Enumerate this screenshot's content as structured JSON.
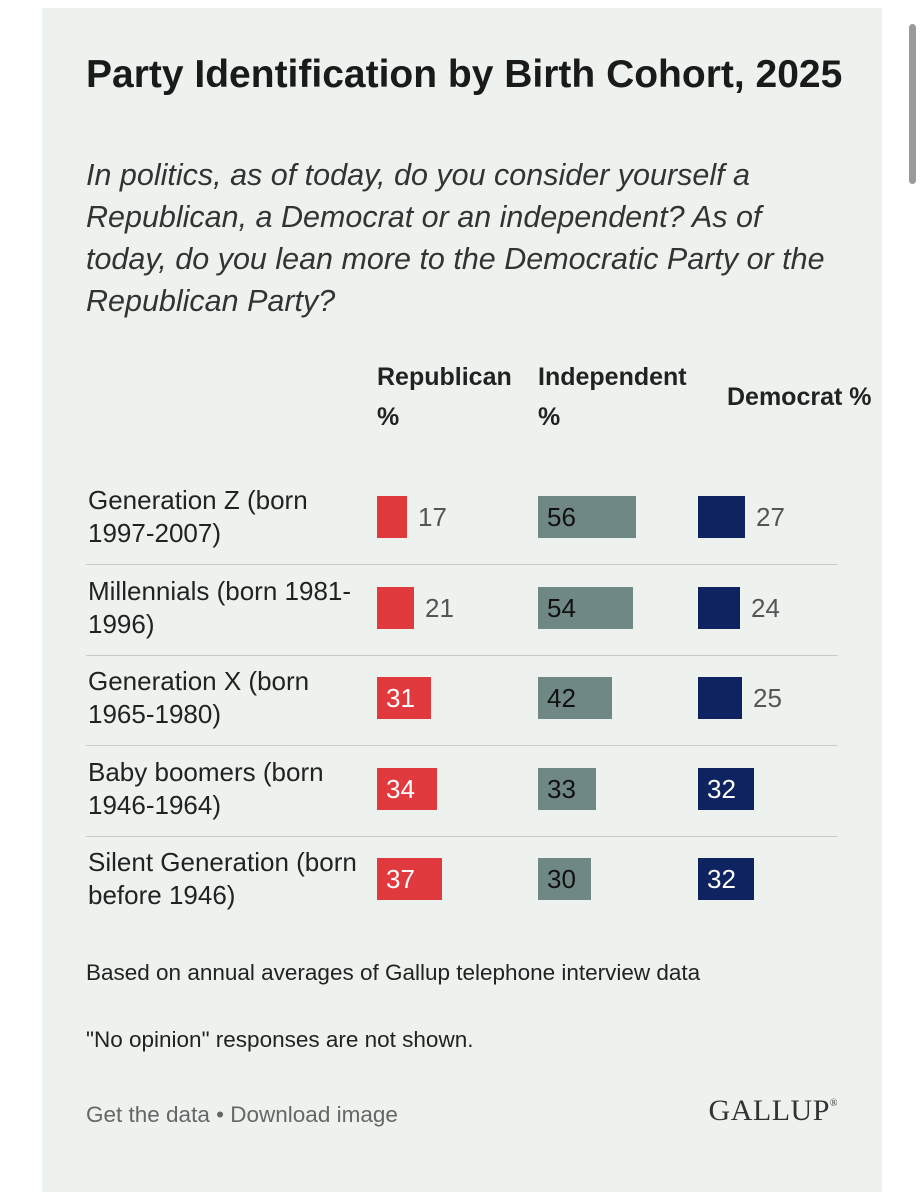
{
  "header": {
    "title": "Party Identification by Birth Cohort, 2025",
    "subtitle": "In politics, as of today, do you consider yourself a Republican, a Democrat or an independent? As of today, do you lean more to the Democratic Party or the Republican Party?"
  },
  "chart_data": {
    "type": "table",
    "title": "Party Identification by Birth Cohort, 2025",
    "columns": [
      "Republican %",
      "Independent %",
      "Democrat %"
    ],
    "categories": [
      "Generation Z (born 1997-2007)",
      "Millennials (born 1981-1996)",
      "Generation X (born 1965-1980)",
      "Baby boomers (born 1946-1964)",
      "Silent Generation (born before 1946)"
    ],
    "series": [
      {
        "name": "Republican %",
        "color": "#e0393e",
        "values": [
          17,
          21,
          31,
          34,
          37
        ]
      },
      {
        "name": "Independent %",
        "color": "#6f8885",
        "values": [
          56,
          54,
          42,
          33,
          30
        ]
      },
      {
        "name": "Democrat %",
        "color": "#0f2360",
        "values": [
          27,
          24,
          25,
          32,
          32
        ]
      }
    ],
    "units": "%"
  },
  "notes": {
    "source": "Based on annual averages of Gallup telephone interview data",
    "no_opinion": "\"No opinion\" responses are not shown."
  },
  "footer": {
    "get_data": "Get the data",
    "separator": "•",
    "download": "Download image",
    "logo": "GALLUP",
    "logo_mark": "®"
  }
}
